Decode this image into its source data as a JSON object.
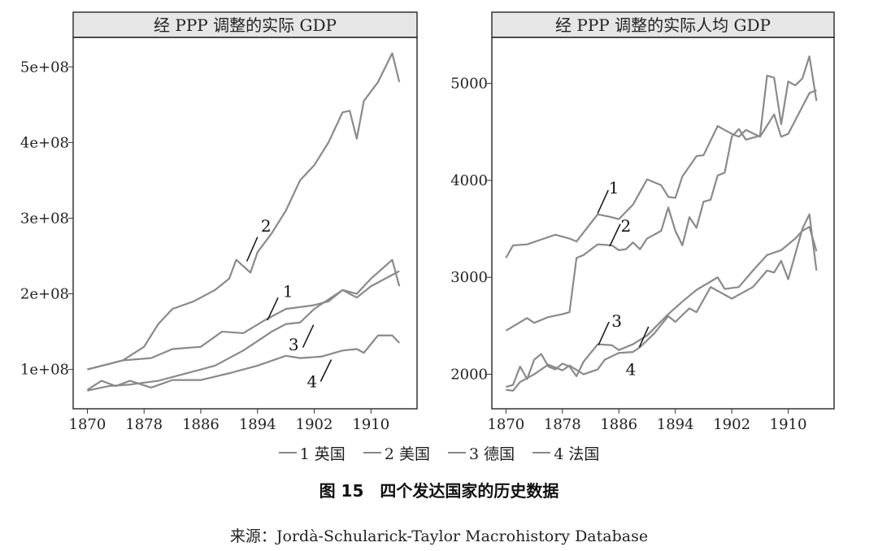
{
  "chart_data": [
    {
      "type": "line",
      "title": "经 PPP 调整的实际 GDP",
      "xlim": [
        1868,
        1916.5
      ],
      "ylim": [
        48000000,
        539000000
      ],
      "xticks": [
        1870,
        1878,
        1886,
        1894,
        1902,
        1910
      ],
      "xtick_labels": [
        "1870",
        "1878",
        "1886",
        "1894",
        "1902",
        "1910"
      ],
      "yticks": [
        100000000,
        200000000,
        300000000,
        400000000,
        500000000
      ],
      "ytick_labels": [
        "1e+08",
        "2e+08",
        "3e+08",
        "4e+08",
        "5e+08"
      ],
      "series": [
        {
          "name": "1",
          "x": [
            1870,
            1875,
            1879,
            1882,
            1886,
            1889,
            1892,
            1895,
            1898,
            1902,
            1904,
            1906,
            1908,
            1910,
            1913,
            1914
          ],
          "y": [
            100000000.0,
            112000000.0,
            115000000.0,
            127000000.0,
            130000000.0,
            150000000.0,
            148000000.0,
            165000000.0,
            180000000.0,
            185000000.0,
            190000000.0,
            205000000.0,
            195000000.0,
            210000000.0,
            225000000.0,
            230000000.0
          ]
        },
        {
          "name": "2",
          "x": [
            1870,
            1875,
            1878,
            1880,
            1882,
            1885,
            1888,
            1890,
            1891,
            1893,
            1894,
            1896,
            1898,
            1900,
            1902,
            1904,
            1906,
            1907,
            1908,
            1909,
            1911,
            1913,
            1914
          ],
          "y": [
            100000000.0,
            112000000.0,
            130000000.0,
            160000000.0,
            180000000.0,
            190000000.0,
            205000000.0,
            220000000.0,
            245000000.0,
            228000000.0,
            255000000.0,
            280000000.0,
            310000000.0,
            350000000.0,
            370000000.0,
            400000000.0,
            440000000.0,
            442000000.0,
            405000000.0,
            455000000.0,
            480000000.0,
            518000000.0,
            480000000.0
          ]
        },
        {
          "name": "3",
          "x": [
            1870,
            1873,
            1876,
            1880,
            1884,
            1888,
            1892,
            1896,
            1898,
            1900,
            1902,
            1906,
            1908,
            1910,
            1913,
            1914
          ],
          "y": [
            72000000.0,
            78000000.0,
            80000000.0,
            85000000.0,
            95000000.0,
            105000000.0,
            125000000.0,
            150000000.0,
            160000000.0,
            162000000.0,
            180000000.0,
            205000000.0,
            200000000.0,
            220000000.0,
            245000000.0,
            210000000.0
          ]
        },
        {
          "name": "4",
          "x": [
            1870,
            1872,
            1874,
            1876,
            1879,
            1882,
            1886,
            1890,
            1894,
            1898,
            1900,
            1903,
            1906,
            1908,
            1909,
            1911,
            1913,
            1914
          ],
          "y": [
            73000000.0,
            85000000.0,
            78000000.0,
            85000000.0,
            76000000.0,
            86000000.0,
            86000000.0,
            95000000.0,
            105000000.0,
            118000000.0,
            115000000.0,
            117000000.0,
            125000000.0,
            127000000.0,
            122000000.0,
            145000000.0,
            145000000.0,
            135000000.0
          ]
        }
      ],
      "annotations": [
        {
          "text": "2",
          "x": 1895.2,
          "y": 290000000.0,
          "line": [
            [
              1892.5,
              243000000.0
            ],
            [
              1894,
              275000000.0
            ]
          ]
        },
        {
          "text": "1",
          "x": 1898.3,
          "y": 203000000.0,
          "line": [
            [
              1895.4,
              165000000.0
            ],
            [
              1896.9,
              195000000.0
            ]
          ]
        },
        {
          "text": "3",
          "x": 1899.1,
          "y": 133000000.0,
          "line": [
            [
              1900.4,
              129000000.0
            ],
            [
              1901.9,
              159000000.0
            ]
          ]
        },
        {
          "text": "4",
          "x": 1901.7,
          "y": 84000000.0,
          "line": [
            [
              1902.9,
              84000000.0
            ],
            [
              1904.4,
              113000000.0
            ]
          ]
        }
      ]
    },
    {
      "type": "line",
      "title": "经 PPP 调整的实际人均 GDP",
      "xlim": [
        1868,
        1916.5
      ],
      "ylim": [
        1644,
        5475
      ],
      "xticks": [
        1870,
        1878,
        1886,
        1894,
        1902,
        1910
      ],
      "xtick_labels": [
        "1870",
        "1878",
        "1886",
        "1894",
        "1902",
        "1910"
      ],
      "yticks": [
        2000,
        3000,
        4000,
        5000
      ],
      "ytick_labels": [
        "2000",
        "3000",
        "4000",
        "5000"
      ],
      "series": [
        {
          "name": "1",
          "x": [
            1870,
            1871,
            1873,
            1877,
            1879,
            1880,
            1883,
            1885,
            1886,
            1888,
            1890,
            1892,
            1893,
            1894,
            1895,
            1897,
            1898,
            1900,
            1902,
            1903,
            1904,
            1906,
            1908,
            1909,
            1910,
            1913,
            1914
          ],
          "y": [
            3200,
            3330,
            3340,
            3440,
            3400,
            3370,
            3650,
            3620,
            3600,
            3750,
            4010,
            3950,
            3830,
            3820,
            4040,
            4250,
            4260,
            4560,
            4480,
            4450,
            4520,
            4450,
            4680,
            4450,
            4480,
            4900,
            4930
          ]
        },
        {
          "name": "2",
          "x": [
            1870,
            1873,
            1874,
            1876,
            1878,
            1879,
            1880,
            1881,
            1883,
            1885,
            1886,
            1887,
            1888,
            1889,
            1890,
            1892,
            1893,
            1894,
            1895,
            1896,
            1897,
            1898,
            1899,
            1900,
            1901,
            1902,
            1903,
            1904,
            1906,
            1907,
            1908,
            1909,
            1910,
            1911,
            1912,
            1913,
            1914
          ],
          "y": [
            2450,
            2580,
            2530,
            2590,
            2620,
            2640,
            3200,
            3230,
            3340,
            3330,
            3280,
            3290,
            3360,
            3290,
            3400,
            3480,
            3720,
            3480,
            3330,
            3620,
            3510,
            3780,
            3800,
            4050,
            4080,
            4450,
            4530,
            4420,
            4460,
            5080,
            5060,
            4580,
            5020,
            4980,
            5050,
            5280,
            4820
          ]
        },
        {
          "name": "3",
          "x": [
            1870,
            1871,
            1872,
            1873,
            1874,
            1875,
            1876,
            1877,
            1878,
            1879,
            1880,
            1881,
            1883,
            1885,
            1886,
            1888,
            1890,
            1893,
            1895,
            1897,
            1900,
            1901,
            1903,
            1905,
            1907,
            1909,
            1911,
            1912,
            1913,
            1914
          ],
          "y": [
            1870,
            1890,
            2080,
            1950,
            2150,
            2210,
            2080,
            2050,
            2110,
            2080,
            1980,
            2130,
            2310,
            2300,
            2250,
            2310,
            2400,
            2620,
            2750,
            2870,
            3000,
            2880,
            2900,
            3070,
            3230,
            3280,
            3400,
            3480,
            3520,
            3270
          ]
        },
        {
          "name": "4",
          "x": [
            1870,
            1871,
            1872,
            1874,
            1876,
            1878,
            1879,
            1881,
            1883,
            1884,
            1886,
            1888,
            1889,
            1891,
            1893,
            1894,
            1896,
            1897,
            1899,
            1902,
            1903,
            1905,
            1907,
            1908,
            1909,
            1910,
            1912,
            1913,
            1914
          ],
          "y": [
            1840,
            1830,
            1920,
            2000,
            2100,
            2040,
            2090,
            2000,
            2050,
            2150,
            2220,
            2230,
            2280,
            2420,
            2600,
            2540,
            2680,
            2640,
            2900,
            2780,
            2820,
            2900,
            3070,
            3050,
            3170,
            2980,
            3500,
            3650,
            3070
          ]
        }
      ],
      "annotations": [
        {
          "text": "1",
          "x": 1885.3,
          "y": 3924,
          "line": [
            [
              1883,
              3660
            ],
            [
              1884.5,
              3900
            ]
          ]
        },
        {
          "text": "2",
          "x": 1887,
          "y": 3530,
          "line": [
            [
              1884.7,
              3320
            ],
            [
              1886.2,
              3550
            ]
          ]
        },
        {
          "text": "3",
          "x": 1885.7,
          "y": 2550,
          "line": [
            [
              1883.1,
              2300
            ],
            [
              1884.6,
              2540
            ]
          ]
        },
        {
          "text": "4",
          "x": 1887.7,
          "y": 2050,
          "line": [
            [
              1888.9,
              2280
            ],
            [
              1890.2,
              2490
            ]
          ]
        }
      ]
    }
  ],
  "legend": [
    {
      "label": "1 英国"
    },
    {
      "label": "2 美国"
    },
    {
      "label": "3 德国"
    },
    {
      "label": "4 法国"
    }
  ],
  "caption": "图 15　四个发达国家的历史数据",
  "source": "来源：Jordà-Schularick-Taylor Macrohistory Database",
  "colors": {
    "line": "#8a8a8a",
    "strip": "#e6e6e6"
  }
}
